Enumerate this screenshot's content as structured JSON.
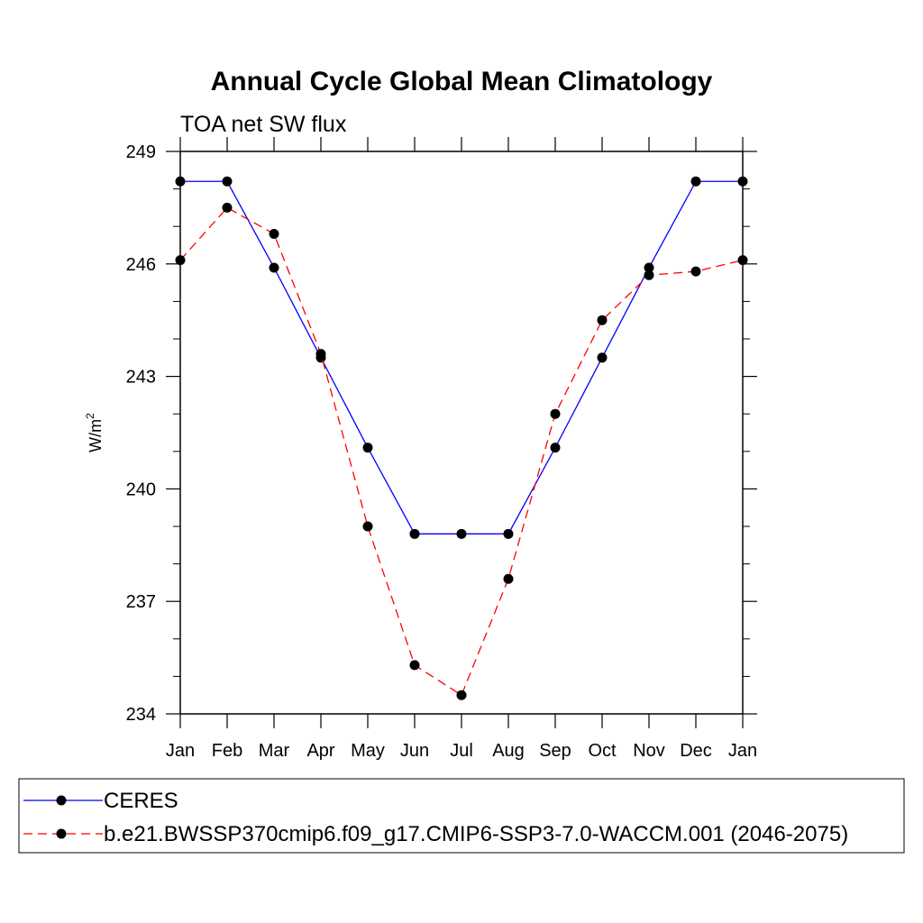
{
  "chart_data": {
    "type": "line",
    "title": "Annual Cycle Global Mean Climatology",
    "subtitle": "TOA net SW flux",
    "ylabel": "W/m",
    "ylabel_sup": "2",
    "xlabel": "",
    "categories": [
      "Jan",
      "Feb",
      "Mar",
      "Apr",
      "May",
      "Jun",
      "Jul",
      "Aug",
      "Sep",
      "Oct",
      "Nov",
      "Dec",
      "Jan"
    ],
    "ylim": [
      234,
      249
    ],
    "yticks": [
      234,
      237,
      240,
      243,
      246,
      249
    ],
    "grid": false,
    "legend_position": "bottom",
    "series": [
      {
        "name": "CERES",
        "color": "#0000ff",
        "dash": "solid",
        "values": [
          248.2,
          248.2,
          245.9,
          243.5,
          241.1,
          238.8,
          238.8,
          238.8,
          241.1,
          243.5,
          245.9,
          248.2,
          248.2
        ]
      },
      {
        "name": "b.e21.BWSSP370cmip6.f09_g17.CMIP6-SSP3-7.0-WACCM.001 (2046-2075)",
        "color": "#ff0000",
        "dash": "dashed",
        "values": [
          246.1,
          247.5,
          246.8,
          243.6,
          239.0,
          235.3,
          234.5,
          237.6,
          242.0,
          244.5,
          245.7,
          245.8,
          246.1
        ]
      }
    ]
  }
}
